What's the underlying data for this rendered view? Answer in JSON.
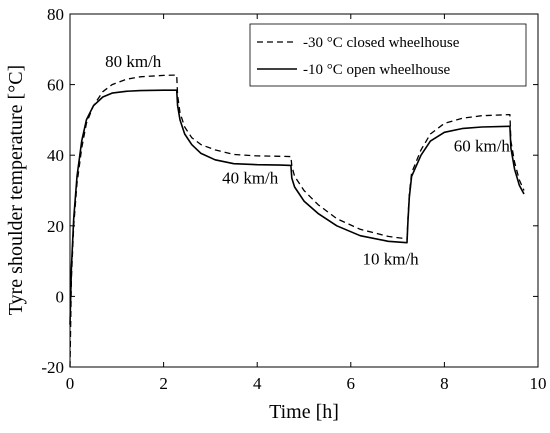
{
  "chart_data": {
    "type": "line",
    "title": "",
    "xlabel": "Time [h]",
    "ylabel": "Tyre shoulder temperature [°C]",
    "xlim": [
      0,
      10
    ],
    "ylim": [
      -20,
      80
    ],
    "xticks": [
      0,
      2,
      4,
      6,
      8,
      10
    ],
    "yticks": [
      -20,
      0,
      20,
      40,
      60,
      80
    ],
    "grid": false,
    "legend": {
      "placement": "top-right"
    },
    "series": [
      {
        "name": "-30 °C closed wheelhouse",
        "style": "dashed",
        "color": "#000000",
        "x": [
          0,
          0.03,
          0.08,
          0.15,
          0.25,
          0.35,
          0.5,
          0.7,
          0.9,
          1.2,
          1.5,
          2.0,
          2.28,
          2.3,
          2.35,
          2.45,
          2.6,
          2.8,
          3.1,
          3.5,
          4.0,
          4.5,
          4.72,
          4.74,
          4.8,
          4.9,
          5.0,
          5.3,
          5.7,
          6.2,
          6.8,
          7.2,
          7.22,
          7.25,
          7.3,
          7.5,
          7.7,
          8.0,
          8.4,
          8.8,
          9.4,
          9.42,
          9.5,
          9.6,
          9.7
        ],
        "y": [
          -20,
          5,
          20,
          32,
          42,
          49,
          54,
          58,
          60,
          61.5,
          62.2,
          62.6,
          62.7,
          57,
          52,
          48,
          45,
          43,
          41.5,
          40.2,
          39.8,
          39.7,
          39.6,
          37,
          34,
          32,
          30,
          26,
          22,
          19,
          17,
          16.3,
          22,
          29,
          35,
          41.5,
          46,
          49,
          50.5,
          51.2,
          51.5,
          44,
          38,
          33,
          30
        ]
      },
      {
        "name": "-10 °C open wheelhouse",
        "style": "solid",
        "color": "#000000",
        "x": [
          0,
          0.03,
          0.08,
          0.15,
          0.25,
          0.35,
          0.5,
          0.7,
          0.9,
          1.2,
          1.5,
          2.0,
          2.28,
          2.3,
          2.35,
          2.45,
          2.6,
          2.8,
          3.1,
          3.5,
          4.0,
          4.5,
          4.72,
          4.74,
          4.8,
          4.9,
          5.0,
          5.3,
          5.7,
          6.2,
          6.8,
          7.2,
          7.22,
          7.25,
          7.3,
          7.5,
          7.7,
          8.0,
          8.4,
          8.8,
          9.4,
          9.42,
          9.5,
          9.6,
          9.7
        ],
        "y": [
          -8,
          8,
          22,
          34,
          44,
          50,
          54,
          56.5,
          57.6,
          58.1,
          58.3,
          58.4,
          58.4,
          54,
          50,
          46,
          43,
          40.5,
          38.7,
          37.6,
          37.3,
          37.2,
          37.1,
          33.5,
          31,
          29,
          27,
          23.5,
          20,
          17.2,
          15.6,
          15.2,
          21,
          28,
          34,
          40,
          44,
          46.5,
          47.6,
          48,
          48.2,
          42,
          36,
          31.5,
          29
        ]
      }
    ],
    "annotations": [
      {
        "text": "80 km/h",
        "x": 1.35,
        "y": 65
      },
      {
        "text": "40 km/h",
        "x": 3.85,
        "y": 32
      },
      {
        "text": "10 km/h",
        "x": 6.85,
        "y": 9
      },
      {
        "text": "60 km/h",
        "x": 8.8,
        "y": 41
      }
    ]
  }
}
